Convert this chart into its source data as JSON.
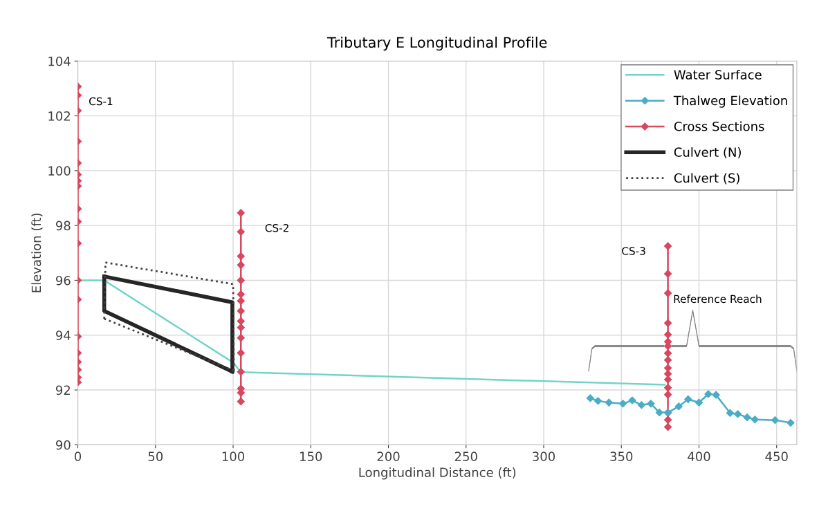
{
  "chart_data": {
    "type": "line",
    "title": "Tributary E Longitudinal Profile",
    "xlabel": "Longitudinal Distance (ft)",
    "ylabel": "Elevation (ft)",
    "xlim": [
      0,
      463
    ],
    "xticks": [
      0,
      50,
      100,
      150,
      200,
      250,
      300,
      350,
      400,
      450
    ],
    "ylim": [
      90,
      104
    ],
    "yticks": [
      90,
      92,
      94,
      96,
      98,
      100,
      102,
      104
    ],
    "grid": true,
    "legend": "top right",
    "series": [
      {
        "name": "Water Surface",
        "color": "#72d3c9",
        "marker": "none",
        "line_style": "solid",
        "x": [
          0,
          17,
          100,
          105,
          378
        ],
        "values": [
          96.0,
          96.0,
          93.0,
          92.65,
          92.19
        ]
      },
      {
        "name": "Thalweg Elevation",
        "color": "#4bacc6",
        "marker": "diamond",
        "line_style": "solid",
        "x": [
          330,
          335,
          342,
          351,
          357,
          363,
          369,
          374.5,
          380,
          387,
          393,
          400,
          406,
          411,
          420,
          425,
          431,
          436,
          449,
          459
        ],
        "values": [
          91.7,
          91.6,
          91.54,
          91.5,
          91.62,
          91.45,
          91.5,
          91.18,
          91.18,
          91.4,
          91.66,
          91.54,
          91.85,
          91.82,
          91.16,
          91.12,
          91.0,
          90.92,
          90.9,
          90.8
        ]
      },
      {
        "name": "Cross Sections",
        "color": "#d9475e",
        "marker": "diamond",
        "line_style": "solid",
        "x": [
          0,
          0,
          0,
          0,
          0,
          0,
          0,
          0,
          0,
          0,
          0,
          0,
          0,
          0,
          0,
          0,
          0,
          0,
          0,
          null,
          105,
          105,
          105,
          105,
          105,
          105,
          105,
          105,
          105,
          105,
          105,
          105,
          105,
          105,
          105,
          105,
          null,
          380,
          380,
          380,
          380,
          380,
          380,
          380,
          380,
          380,
          380,
          380,
          380,
          380,
          380,
          380,
          380,
          380
        ],
        "values": [
          103.07,
          102.75,
          102.19,
          101.07,
          100.28,
          99.86,
          99.63,
          99.44,
          98.61,
          98.14,
          97.35,
          96.0,
          95.3,
          93.95,
          93.35,
          93.02,
          92.74,
          92.46,
          92.28,
          null,
          98.46,
          97.77,
          96.88,
          96.56,
          96.0,
          95.49,
          95.25,
          94.88,
          94.51,
          94.28,
          93.9,
          93.35,
          92.66,
          92.05,
          91.9,
          91.58,
          null,
          97.25,
          96.24,
          95.53,
          94.44,
          94.02,
          93.76,
          93.6,
          93.34,
          93.09,
          92.8,
          92.59,
          92.38,
          92.08,
          91.83,
          91.16,
          90.91,
          90.65
        ]
      },
      {
        "name": "Culvert (N)",
        "color": "#262626",
        "marker": "none",
        "line_style": "solid",
        "x": [
          17,
          99.5,
          99.5,
          null,
          17,
          17,
          99.5
        ],
        "values": [
          96.14,
          95.2,
          92.67,
          null,
          96.14,
          94.88,
          92.67
        ]
      },
      {
        "name": "Culvert (S)",
        "color": "#404040",
        "marker": "none",
        "line_style": "dotted",
        "x": [
          17.8,
          100,
          100.5,
          null,
          17,
          17.8,
          null,
          17,
          100.5
        ],
        "values": [
          96.65,
          95.86,
          92.7,
          null,
          94.6,
          96.65,
          null,
          94.6,
          92.7
        ]
      }
    ],
    "annotations": [
      "CS-1",
      "CS-2",
      "CS-3",
      "Reference Reach"
    ]
  }
}
